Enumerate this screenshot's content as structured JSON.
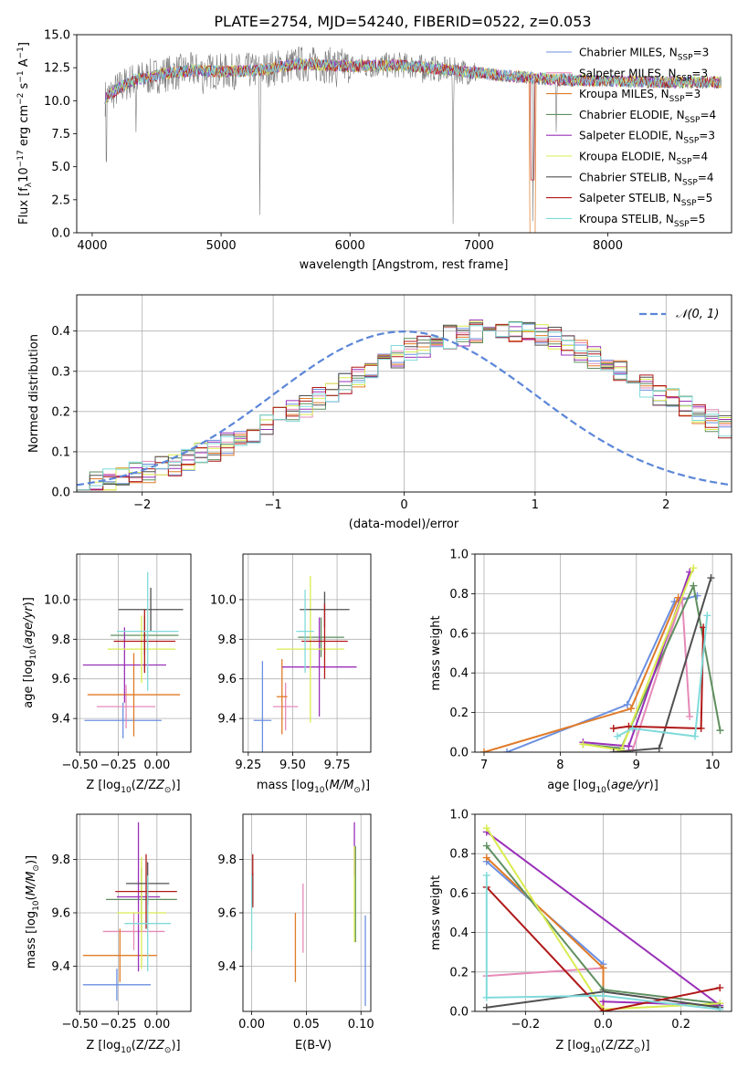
{
  "figure_title": "PLATE=2754, MJD=54240, FIBERID=0522, z=0.053",
  "colors": {
    "series": [
      "#6b8fe0",
      "#e58ab8",
      "#e07b28",
      "#5f8f5f",
      "#9a30b8",
      "#d9ec50",
      "#505050",
      "#b01818",
      "#80dada"
    ],
    "spectrum_grey": "#7a7a7a",
    "grid": "#b0b0b0"
  },
  "chart_data": [
    {
      "id": "spectrum",
      "type": "line",
      "xlabel": "wavelength [Angstrom, rest frame]",
      "ylabel_main": "Flux [f",
      "ylabel_sub": "λ",
      "ylabel_mid": "10",
      "ylabel_exp": "−17",
      "ylabel_tail": " erg cm",
      "ylabel_exp2": "−2",
      "ylabel_tail2": " s",
      "ylabel_exp3": "−1",
      "ylabel_tail3": " A",
      "ylabel_exp4": "−1",
      "ylabel_end": "]",
      "xlim": [
        3880,
        8960
      ],
      "ylim": [
        0,
        15
      ],
      "xticks": [
        4000,
        5000,
        6000,
        7000,
        8000
      ],
      "yticks": [
        0.0,
        2.5,
        5.0,
        7.5,
        10.0,
        12.5,
        15.0
      ],
      "ytick_labels": [
        "0.0",
        "2.5",
        "5.0",
        "7.5",
        "10.0",
        "12.5",
        "15.0"
      ],
      "grid": false,
      "legend_position": "top-right",
      "legend": [
        {
          "name": "Chabrier MILES, N",
          "sub": "SSP",
          "val": "=3"
        },
        {
          "name": "Salpeter MILES, N",
          "sub": "SSP",
          "val": "=3"
        },
        {
          "name": "Kroupa MILES, N",
          "sub": "SSP",
          "val": "=3"
        },
        {
          "name": "Chabrier ELODIE, N",
          "sub": "SSP",
          "val": "=4"
        },
        {
          "name": "Salpeter ELODIE, N",
          "sub": "SSP",
          "val": "=3"
        },
        {
          "name": "Kroupa ELODIE, N",
          "sub": "SSP",
          "val": "=4"
        },
        {
          "name": "Chabrier STELIB, N",
          "sub": "SSP",
          "val": "=4"
        },
        {
          "name": "Salpeter STELIB, N",
          "sub": "SSP",
          "val": "=5"
        },
        {
          "name": "Kroupa STELIB, N",
          "sub": "SSP",
          "val": "=5"
        }
      ],
      "continuum": {
        "x": [
          4100,
          4200,
          4300,
          4400,
          4600,
          4800,
          5000,
          5300,
          5600,
          6000,
          6400,
          6800,
          7200,
          7600,
          8000,
          8400,
          8900
        ],
        "y": [
          10.2,
          10.9,
          11.5,
          11.7,
          12.1,
          12.3,
          12.2,
          12.3,
          12.8,
          12.6,
          12.7,
          12.3,
          11.9,
          11.6,
          11.5,
          11.4,
          11.4
        ]
      },
      "absorption_features": [
        {
          "x": 4110,
          "depth": 6.2
        },
        {
          "x": 4340,
          "depth": 3.5
        },
        {
          "x": 4862,
          "depth": 1.8
        },
        {
          "x": 5175,
          "depth": 1.3
        },
        {
          "x": 5300,
          "depth": 12.0
        },
        {
          "x": 5894,
          "depth": 1.6
        },
        {
          "x": 6563,
          "depth": 1.2
        },
        {
          "x": 6800,
          "depth": 11.0
        },
        {
          "x": 7420,
          "depth": 10.5
        },
        {
          "x": 7600,
          "depth": 3.5
        }
      ]
    },
    {
      "id": "residuals",
      "type": "histogram",
      "xlabel": "(data-model)/error",
      "ylabel": "Normed distribution",
      "xlim": [
        -2.5,
        2.5
      ],
      "ylim": [
        0,
        0.49
      ],
      "xticks": [
        -2,
        -1,
        0,
        1,
        2
      ],
      "xtick_labels": [
        "−2",
        "−1",
        "0",
        "1",
        "2"
      ],
      "yticks": [
        0.0,
        0.1,
        0.2,
        0.3,
        0.4
      ],
      "ytick_labels": [
        "0.0",
        "0.1",
        "0.2",
        "0.3",
        "0.4"
      ],
      "grid": true,
      "legend_position": "top-right",
      "legend_label_math": "𝒩(0, 1)",
      "bin_width": 0.1,
      "bin_start": -2.5,
      "density_values": [
        0.02,
        0.024,
        0.03,
        0.038,
        0.045,
        0.052,
        0.06,
        0.07,
        0.08,
        0.092,
        0.105,
        0.12,
        0.135,
        0.152,
        0.17,
        0.185,
        0.2,
        0.215,
        0.232,
        0.25,
        0.268,
        0.29,
        0.305,
        0.322,
        0.338,
        0.352,
        0.365,
        0.375,
        0.385,
        0.392,
        0.398,
        0.402,
        0.405,
        0.402,
        0.398,
        0.39,
        0.38,
        0.368,
        0.352,
        0.336,
        0.318,
        0.3,
        0.282,
        0.262,
        0.245,
        0.228,
        0.21,
        0.192,
        0.175,
        0.16
      ]
    },
    {
      "id": "age_vs_Z",
      "type": "scatter",
      "xlabel_main": "Z [log",
      "xlabel_sub": "10",
      "xlabel_tail": "(Z/Z",
      "xlabel_sub2": "⊙",
      "xlabel_end": ")]",
      "ylabel_main": "age  [log",
      "ylabel_sub": "10",
      "ylabel_tail": "(age/yr)]",
      "xlim": [
        -0.52,
        0.22
      ],
      "ylim": [
        9.23,
        10.23
      ],
      "xticks": [
        -0.5,
        -0.25,
        0.0
      ],
      "xtick_labels": [
        "−0.50",
        "−0.25",
        "0.00"
      ],
      "yticks": [
        9.4,
        9.6,
        9.8,
        10.0
      ],
      "ytick_labels": [
        "9.4",
        "9.6",
        "9.8",
        "10.0"
      ],
      "grid": true,
      "points": [
        {
          "x": -0.22,
          "y": 9.39,
          "xerr": 0.25,
          "yerr": 0.09,
          "c": 0
        },
        {
          "x": -0.2,
          "y": 9.46,
          "xerr": 0.19,
          "yerr": 0.11,
          "c": 1
        },
        {
          "x": -0.15,
          "y": 9.52,
          "xerr": 0.3,
          "yerr": 0.21,
          "c": 2
        },
        {
          "x": -0.08,
          "y": 9.82,
          "xerr": 0.22,
          "yerr": 0.1,
          "c": 3
        },
        {
          "x": -0.21,
          "y": 9.67,
          "xerr": 0.27,
          "yerr": 0.19,
          "c": 4
        },
        {
          "x": -0.1,
          "y": 9.75,
          "xerr": 0.22,
          "yerr": 0.17,
          "c": 5
        },
        {
          "x": -0.04,
          "y": 9.95,
          "xerr": 0.21,
          "yerr": 0.11,
          "c": 6
        },
        {
          "x": -0.08,
          "y": 9.79,
          "xerr": 0.2,
          "yerr": 0.16,
          "c": 7
        },
        {
          "x": -0.06,
          "y": 9.84,
          "xerr": 0.2,
          "yerr": 0.3,
          "c": 8
        }
      ]
    },
    {
      "id": "age_vs_mass",
      "type": "scatter",
      "xlabel_main": "mass [log",
      "xlabel_sub": "10",
      "xlabel_tail": "(M/M",
      "xlabel_sub2": "⊙",
      "xlabel_end": ")]",
      "xlim": [
        9.22,
        9.94
      ],
      "ylim": [
        9.23,
        10.23
      ],
      "xticks": [
        9.25,
        9.5,
        9.75
      ],
      "xtick_labels": [
        "9.25",
        "9.50",
        "9.75"
      ],
      "yticks": [
        9.4,
        9.6,
        9.8,
        10.0
      ],
      "ytick_labels": [
        "9.4",
        "9.6",
        "9.8",
        "10.0"
      ],
      "grid": true,
      "points": [
        {
          "x": 9.33,
          "y": 9.39,
          "xerr": 0.05,
          "yerr": 0.3,
          "c": 0
        },
        {
          "x": 9.46,
          "y": 9.46,
          "xerr": 0.07,
          "yerr": 0.12,
          "c": 1
        },
        {
          "x": 9.44,
          "y": 9.51,
          "xerr": 0.03,
          "yerr": 0.19,
          "c": 2
        },
        {
          "x": 9.66,
          "y": 9.81,
          "xerr": 0.13,
          "yerr": 0.1,
          "c": 3
        },
        {
          "x": 9.65,
          "y": 9.66,
          "xerr": 0.21,
          "yerr": 0.25,
          "c": 4
        },
        {
          "x": 9.6,
          "y": 9.75,
          "xerr": 0.19,
          "yerr": 0.37,
          "c": 5
        },
        {
          "x": 9.68,
          "y": 9.95,
          "xerr": 0.14,
          "yerr": 0.09,
          "c": 6
        },
        {
          "x": 9.68,
          "y": 9.79,
          "xerr": 0.13,
          "yerr": 0.19,
          "c": 7
        },
        {
          "x": 9.57,
          "y": 9.84,
          "xerr": 0.05,
          "yerr": 0.21,
          "c": 8
        }
      ]
    },
    {
      "id": "mw_vs_age",
      "type": "line",
      "xlabel_main": "age  [log",
      "xlabel_sub": "10",
      "xlabel_tail": "(age/yr)]",
      "ylabel": "mass weight",
      "xlim": [
        6.88,
        10.25
      ],
      "ylim": [
        0,
        1.0
      ],
      "xticks": [
        7,
        8,
        9,
        10
      ],
      "xtick_labels": [
        "7",
        "8",
        "9",
        "10"
      ],
      "yticks": [
        0.0,
        0.2,
        0.4,
        0.6,
        0.8,
        1.0
      ],
      "ytick_labels": [
        "0.0",
        "0.2",
        "0.4",
        "0.6",
        "0.8",
        "1.0"
      ],
      "grid": true,
      "series": [
        {
          "c": 0,
          "x": [
            7.3,
            8.88,
            9.5,
            9.8
          ],
          "y": [
            0.0,
            0.24,
            0.76,
            0.79
          ]
        },
        {
          "c": 1,
          "x": [
            8.7,
            8.95,
            9.6,
            9.7
          ],
          "y": [
            0.0,
            0.01,
            0.78,
            0.18
          ]
        },
        {
          "c": 2,
          "x": [
            7.0,
            8.93,
            9.55
          ],
          "y": [
            0.0,
            0.22,
            0.78
          ]
        },
        {
          "c": 3,
          "x": [
            8.3,
            8.8,
            9.75,
            10.1
          ],
          "y": [
            0.04,
            0.02,
            0.84,
            0.11
          ]
        },
        {
          "c": 4,
          "x": [
            8.3,
            8.9,
            9.7
          ],
          "y": [
            0.05,
            0.03,
            0.91
          ]
        },
        {
          "c": 5,
          "x": [
            8.3,
            8.8,
            9.75
          ],
          "y": [
            0.04,
            0.01,
            0.93
          ]
        },
        {
          "c": 6,
          "x": [
            8.7,
            9.3,
            9.98
          ],
          "y": [
            0.0,
            0.02,
            0.88
          ]
        },
        {
          "c": 7,
          "x": [
            8.7,
            8.9,
            9.85,
            9.88
          ],
          "y": [
            0.12,
            0.13,
            0.12,
            0.63
          ]
        },
        {
          "c": 8,
          "x": [
            8.75,
            8.95,
            9.77,
            9.93
          ],
          "y": [
            0.08,
            0.12,
            0.08,
            0.69
          ]
        }
      ]
    },
    {
      "id": "mass_vs_Z",
      "type": "scatter",
      "xlabel_main": "Z [log",
      "xlabel_sub": "10",
      "xlabel_tail": "(Z/Z",
      "xlabel_sub2": "⊙",
      "xlabel_end": ")]",
      "ylabel_main": "mass [log",
      "ylabel_sub": "10",
      "ylabel_tail": "(M/M",
      "ylabel_sub2": "⊙",
      "ylabel_end": ")]",
      "xlim": [
        -0.52,
        0.22
      ],
      "ylim": [
        9.23,
        9.97
      ],
      "xticks": [
        -0.5,
        -0.25,
        0.0
      ],
      "xtick_labels": [
        "−0.50",
        "−0.25",
        "0.00"
      ],
      "yticks": [
        9.4,
        9.6,
        9.8
      ],
      "ytick_labels": [
        "9.4",
        "9.6",
        "9.8"
      ],
      "grid": true,
      "points": [
        {
          "x": -0.26,
          "y": 9.33,
          "xerr": 0.22,
          "yerr": 0.06,
          "c": 0
        },
        {
          "x": -0.15,
          "y": 9.53,
          "xerr": 0.2,
          "yerr": 0.07,
          "c": 1
        },
        {
          "x": -0.24,
          "y": 9.44,
          "xerr": 0.24,
          "yerr": 0.1,
          "c": 2
        },
        {
          "x": -0.1,
          "y": 9.65,
          "xerr": 0.23,
          "yerr": 0.12,
          "c": 3
        },
        {
          "x": -0.12,
          "y": 9.66,
          "xerr": 0.14,
          "yerr": 0.28,
          "c": 4
        },
        {
          "x": -0.1,
          "y": 9.6,
          "xerr": 0.16,
          "yerr": 0.21,
          "c": 5
        },
        {
          "x": -0.06,
          "y": 9.71,
          "xerr": 0.14,
          "yerr": 0.08,
          "c": 6
        },
        {
          "x": -0.07,
          "y": 9.68,
          "xerr": 0.2,
          "yerr": 0.14,
          "c": 7
        },
        {
          "x": -0.06,
          "y": 9.56,
          "xerr": 0.15,
          "yerr": 0.18,
          "c": 8
        }
      ]
    },
    {
      "id": "mass_vs_ebv",
      "type": "scatter",
      "xlabel": "E(B-V)",
      "xlim": [
        -0.008,
        0.109
      ],
      "ylim": [
        9.23,
        9.97
      ],
      "xticks": [
        0.0,
        0.05,
        0.1
      ],
      "xtick_labels": [
        "0.00",
        "0.05",
        "0.10"
      ],
      "yticks": [
        9.4,
        9.6,
        9.8
      ],
      "ytick_labels": [
        "9.4",
        "9.6",
        "9.8"
      ],
      "grid": true,
      "points": [
        {
          "x": 0.104,
          "y": 9.42,
          "xerr": 0.0,
          "yerr": 0.17,
          "c": 0
        },
        {
          "x": 0.047,
          "y": 9.58,
          "xerr": 0.0,
          "yerr": 0.13,
          "c": 1
        },
        {
          "x": 0.04,
          "y": 9.47,
          "xerr": 0.0,
          "yerr": 0.13,
          "c": 2
        },
        {
          "x": 0.095,
          "y": 9.67,
          "xerr": 0.0,
          "yerr": 0.18,
          "c": 3
        },
        {
          "x": 0.094,
          "y": 9.84,
          "xerr": 0.0,
          "yerr": 0.1,
          "c": 4
        },
        {
          "x": 0.094,
          "y": 9.67,
          "xerr": 0.0,
          "yerr": 0.18,
          "c": 5
        },
        {
          "x": 0.001,
          "y": 9.69,
          "xerr": 0.0,
          "yerr": 0.06,
          "c": 6
        },
        {
          "x": 0.001,
          "y": 9.72,
          "xerr": 0.0,
          "yerr": 0.1,
          "c": 7
        },
        {
          "x": 0.0,
          "y": 9.6,
          "xerr": 0.0,
          "yerr": 0.14,
          "c": 8
        }
      ]
    },
    {
      "id": "mw_vs_Z",
      "type": "line",
      "xlabel_main": "Z [log",
      "xlabel_sub": "10",
      "xlabel_tail": "(Z/Z",
      "xlabel_sub2": "⊙",
      "xlabel_end": ")]",
      "ylabel": "mass weight",
      "xlim": [
        -0.33,
        0.33
      ],
      "ylim": [
        0,
        1.0
      ],
      "xticks": [
        -0.2,
        0.0,
        0.2
      ],
      "xtick_labels": [
        "−0.2",
        "0.0",
        "0.2"
      ],
      "yticks": [
        0.0,
        0.2,
        0.4,
        0.6,
        0.8,
        1.0
      ],
      "ytick_labels": [
        "0.0",
        "0.2",
        "0.4",
        "0.6",
        "0.8",
        "1.0"
      ],
      "grid": true,
      "series": [
        {
          "c": 0,
          "x": [
            -0.3,
            0.0,
            0.0
          ],
          "y": [
            0.76,
            0.24,
            0.0
          ]
        },
        {
          "c": 1,
          "x": [
            -0.3,
            0.0,
            0.0
          ],
          "y": [
            0.18,
            0.22,
            0.0
          ]
        },
        {
          "c": 2,
          "x": [
            -0.3,
            0.0,
            0.0
          ],
          "y": [
            0.78,
            0.22,
            0.0
          ]
        },
        {
          "c": 3,
          "x": [
            -0.3,
            0.0,
            0.3
          ],
          "y": [
            0.84,
            0.11,
            0.04
          ]
        },
        {
          "c": 4,
          "x": [
            -0.3,
            0.3,
            0.0
          ],
          "y": [
            0.91,
            0.03,
            0.05
          ]
        },
        {
          "c": 5,
          "x": [
            -0.3,
            0.0,
            0.3
          ],
          "y": [
            0.93,
            0.01,
            0.04
          ]
        },
        {
          "c": 6,
          "x": [
            -0.3,
            0.0,
            0.3
          ],
          "y": [
            0.02,
            0.1,
            0.02
          ]
        },
        {
          "c": 7,
          "x": [
            -0.3,
            0.0,
            0.3
          ],
          "y": [
            0.63,
            0.0,
            0.12
          ]
        },
        {
          "c": 8,
          "x": [
            -0.3,
            -0.3,
            0.0,
            0.3
          ],
          "y": [
            0.69,
            0.07,
            0.08,
            0.01
          ]
        }
      ]
    }
  ]
}
